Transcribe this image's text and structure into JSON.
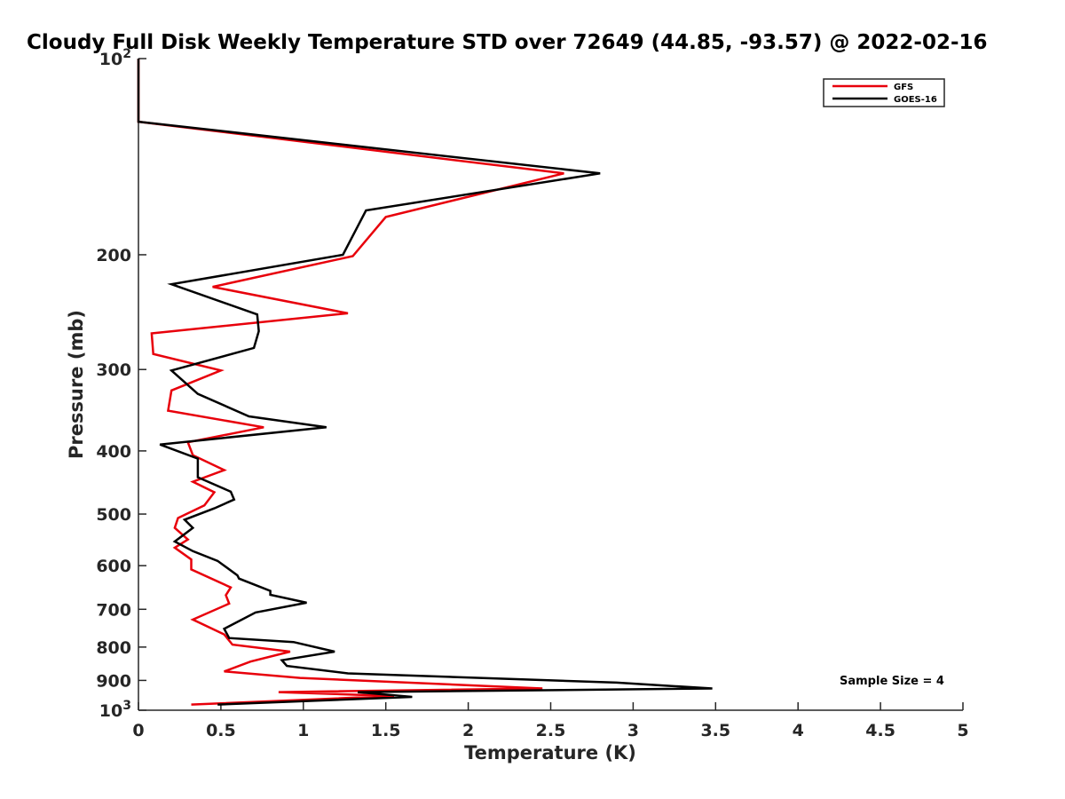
{
  "chart_data": {
    "type": "line",
    "title": "Cloudy Full Disk Weekly Temperature STD over 72649 (44.85, -93.57) @ 2022-02-16",
    "xlabel": "Temperature (K)",
    "ylabel": "Pressure (mb)",
    "xlim": [
      0,
      5
    ],
    "ylim": [
      100,
      1000
    ],
    "y_scale": "log",
    "y_direction": "reversed",
    "x_ticks": [
      "0",
      "0.5",
      "1",
      "1.5",
      "2",
      "2.5",
      "3",
      "3.5",
      "4",
      "4.5",
      "5"
    ],
    "y_ticks": [
      {
        "value": 100,
        "base": "10",
        "exp": "2"
      },
      {
        "value": 200,
        "label": "200"
      },
      {
        "value": 300,
        "label": "300"
      },
      {
        "value": 400,
        "label": "400"
      },
      {
        "value": 500,
        "label": "500"
      },
      {
        "value": 600,
        "label": "600"
      },
      {
        "value": 700,
        "label": "700"
      },
      {
        "value": 800,
        "label": "800"
      },
      {
        "value": 900,
        "label": "900"
      },
      {
        "value": 1000,
        "base": "10",
        "exp": "3"
      }
    ],
    "legend": {
      "position": "top-right"
    },
    "annotation": "Sample Size = 4",
    "series": [
      {
        "name": "GFS",
        "color": "#e8000b",
        "points": [
          [
            0,
            100
          ],
          [
            0,
            125
          ],
          [
            2.58,
            150
          ],
          [
            1.5,
            175
          ],
          [
            1.3,
            201
          ],
          [
            0.45,
            224
          ],
          [
            1.27,
            246
          ],
          [
            0.08,
            264
          ],
          [
            0.09,
            284
          ],
          [
            0.5,
            301
          ],
          [
            0.2,
            323
          ],
          [
            0.18,
            347
          ],
          [
            0.76,
            368
          ],
          [
            0.3,
            388
          ],
          [
            0.33,
            406
          ],
          [
            0.52,
            428
          ],
          [
            0.33,
            446
          ],
          [
            0.46,
            463
          ],
          [
            0.4,
            485
          ],
          [
            0.24,
            507
          ],
          [
            0.22,
            525
          ],
          [
            0.3,
            547
          ],
          [
            0.22,
            563
          ],
          [
            0.32,
            587
          ],
          [
            0.32,
            608
          ],
          [
            0.56,
            648
          ],
          [
            0.53,
            666
          ],
          [
            0.55,
            686
          ],
          [
            0.33,
            726
          ],
          [
            0.52,
            765
          ],
          [
            0.57,
            793
          ],
          [
            0.92,
            813
          ],
          [
            0.68,
            842
          ],
          [
            0.52,
            872
          ],
          [
            0.98,
            892
          ],
          [
            2.45,
            926
          ],
          [
            0.85,
            938
          ],
          [
            1.55,
            951
          ],
          [
            0.32,
            980
          ]
        ]
      },
      {
        "name": "GOES-16",
        "color": "#000000",
        "points": [
          [
            0,
            100
          ],
          [
            0,
            125
          ],
          [
            2.8,
            150
          ],
          [
            1.38,
            171
          ],
          [
            1.24,
            200
          ],
          [
            0.2,
            222
          ],
          [
            0.72,
            247
          ],
          [
            0.73,
            262
          ],
          [
            0.7,
            278
          ],
          [
            0.2,
            301
          ],
          [
            0.36,
            327
          ],
          [
            0.67,
            354
          ],
          [
            1.14,
            368
          ],
          [
            0.13,
            391
          ],
          [
            0.36,
            411
          ],
          [
            0.36,
            439
          ],
          [
            0.56,
            462
          ],
          [
            0.58,
            475
          ],
          [
            0.46,
            490
          ],
          [
            0.28,
            510
          ],
          [
            0.33,
            525
          ],
          [
            0.22,
            551
          ],
          [
            0.33,
            570
          ],
          [
            0.48,
            590
          ],
          [
            0.6,
            621
          ],
          [
            0.61,
            628
          ],
          [
            0.8,
            656
          ],
          [
            0.8,
            665
          ],
          [
            1.02,
            684
          ],
          [
            0.71,
            708
          ],
          [
            0.52,
            750
          ],
          [
            0.55,
            775
          ],
          [
            0.94,
            786
          ],
          [
            1.19,
            813
          ],
          [
            0.87,
            838
          ],
          [
            0.9,
            855
          ],
          [
            1.27,
            878
          ],
          [
            2.9,
            907
          ],
          [
            3.48,
            926
          ],
          [
            1.33,
            938
          ],
          [
            1.66,
            954
          ],
          [
            0.48,
            980
          ]
        ]
      }
    ]
  }
}
